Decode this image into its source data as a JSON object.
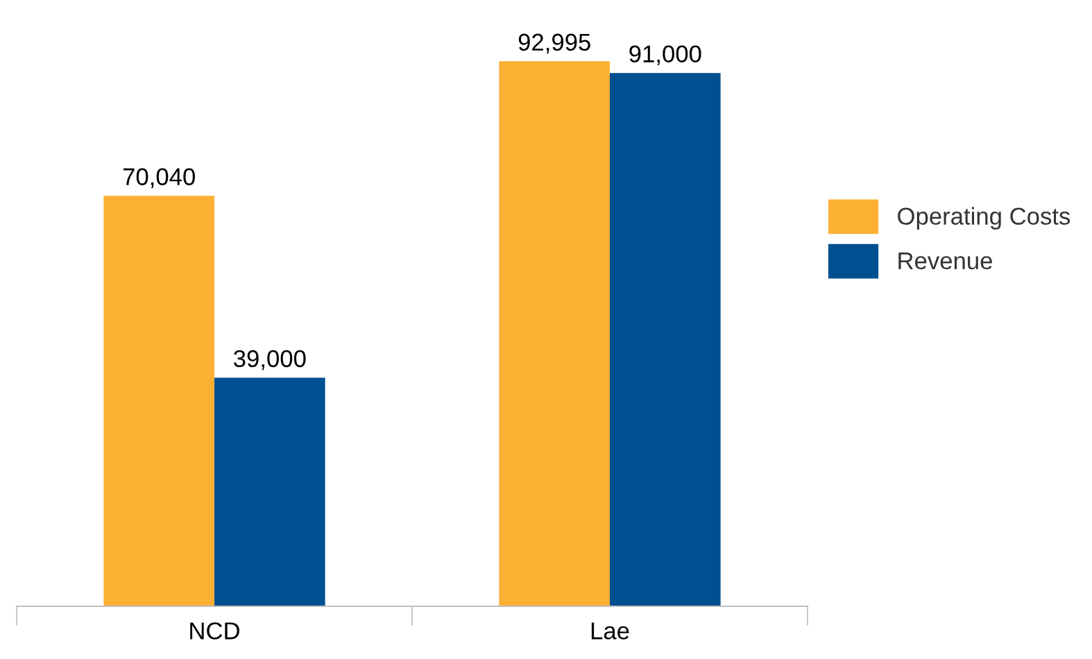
{
  "chart_data": {
    "type": "bar",
    "categories": [
      "NCD",
      "Lae"
    ],
    "series": [
      {
        "name": "Operating Costs",
        "color": "#fbb034",
        "values": [
          70040,
          92995
        ],
        "value_labels": [
          "70,040",
          "92,995"
        ]
      },
      {
        "name": "Revenue",
        "color": "#004f91",
        "values": [
          39000,
          91000
        ],
        "value_labels": [
          "39,000",
          "91,000"
        ]
      }
    ],
    "legend": "right",
    "grid": false
  }
}
